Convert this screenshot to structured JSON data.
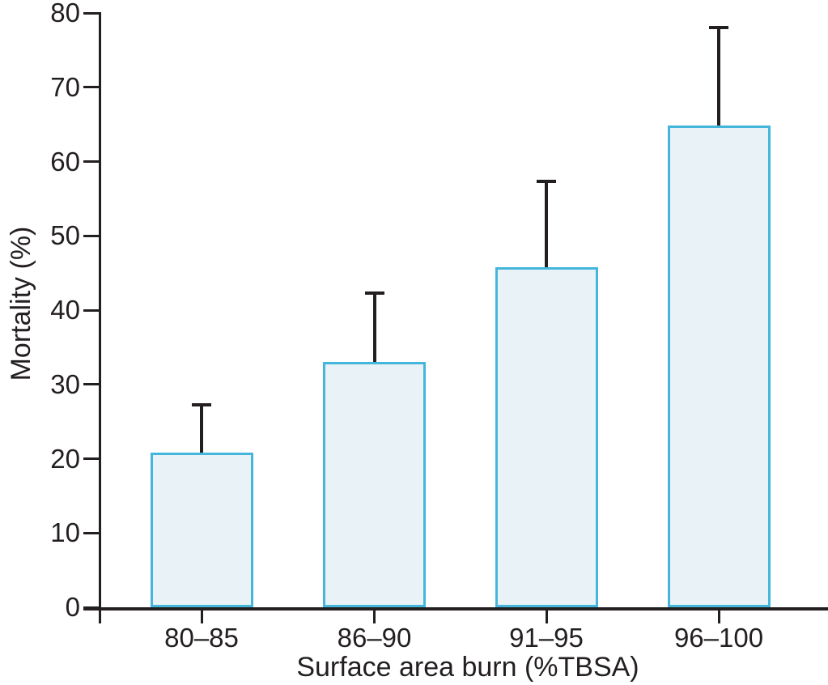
{
  "chart_data": {
    "type": "bar",
    "title": "",
    "categories": [
      "80–85",
      "86–90",
      "91–95",
      "96–100"
    ],
    "values": [
      20.8,
      33.0,
      45.8,
      64.9
    ],
    "error_plus": [
      6.4,
      9.3,
      11.5,
      13.1
    ],
    "xlabel": "Surface area burn (%TBSA)",
    "ylabel": "Mortality (%)",
    "ylim": [
      0,
      80
    ],
    "yticks": [
      0,
      10,
      20,
      30,
      40,
      50,
      60,
      70,
      80
    ],
    "grid": false,
    "legend": false,
    "error_bars": "upper only",
    "colors": {
      "bar_fill": "#E9F2F6",
      "bar_border": "#45B6DB",
      "axis": "#231F20",
      "error_bar": "#231F20",
      "text": "#231F20",
      "background": "#FFFFFF"
    }
  }
}
